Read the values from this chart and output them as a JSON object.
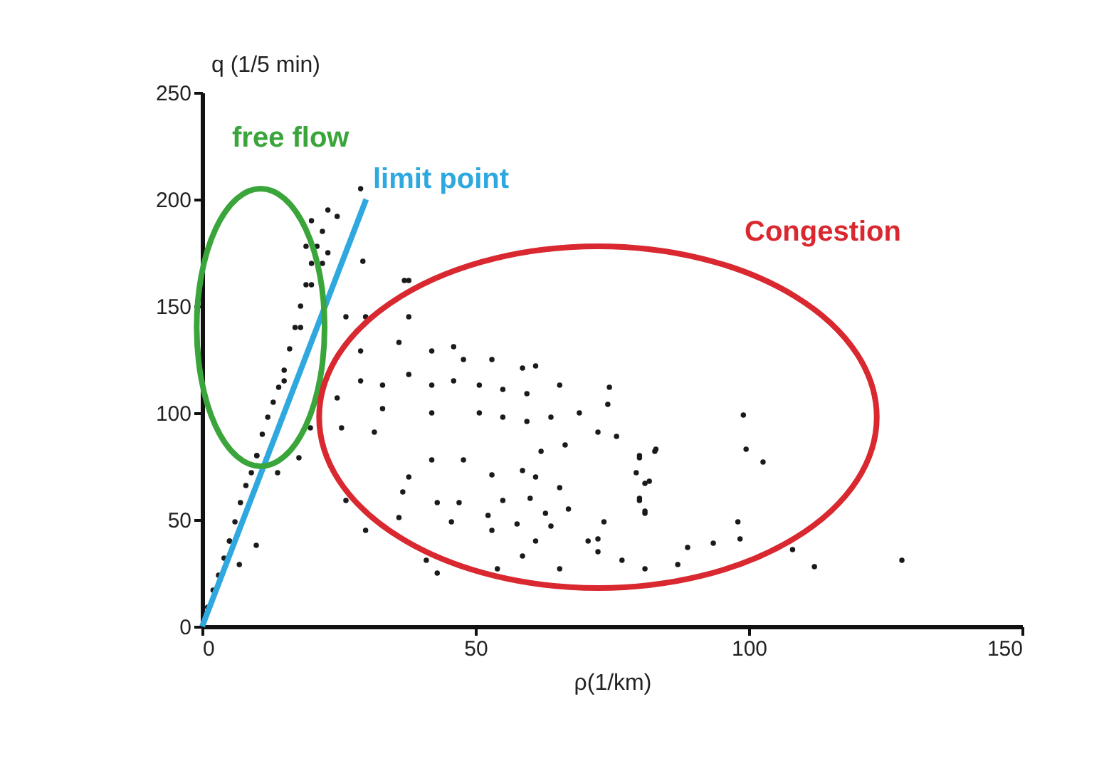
{
  "chart_data": {
    "type": "scatter",
    "xlabel": "ρ(1/km)",
    "ylabel": "q (1/5 min)",
    "xlim": [
      0,
      150
    ],
    "ylim": [
      0,
      250
    ],
    "xticks": [
      0,
      50,
      100,
      150
    ],
    "yticks": [
      0,
      50,
      100,
      150,
      200,
      250
    ],
    "grid": false,
    "annotations": [
      "free flow",
      "limit point",
      "Congestion"
    ],
    "series": [
      {
        "marker": "circle",
        "color": "#1a1a1a",
        "x": [
          1,
          2,
          3,
          4,
          5,
          6,
          7,
          8,
          9,
          10,
          11,
          12,
          13,
          14,
          15,
          16,
          17,
          18,
          19,
          20,
          21,
          22,
          19,
          20,
          23,
          5,
          10,
          15,
          18,
          20,
          22,
          23,
          9.9,
          6.8,
          13.8,
          17.7,
          19.8,
          29.4,
          37,
          24.7,
          29,
          37.8,
          26.3,
          29.9,
          37.8,
          29,
          36,
          42,
          46,
          47.8,
          53,
          58.6,
          61,
          29,
          33,
          37.8,
          42,
          46,
          50.7,
          55,
          59.4,
          65.4,
          74.5,
          24.7,
          33,
          42,
          50.7,
          55,
          59.4,
          63.8,
          69,
          74.2,
          72.4,
          75.8,
          66.4,
          62,
          82.8,
          80,
          25.5,
          31.5,
          42,
          47.8,
          53,
          58.6,
          61,
          65.4,
          37.8,
          36.7,
          79.4,
          81,
          26.3,
          43,
          47,
          55,
          60,
          52.3,
          62.8,
          67,
          36,
          45.6,
          57.6,
          63.8,
          53,
          29.9,
          61,
          70.6,
          72.4,
          73.5,
          81,
          80,
          58.6,
          72.4,
          76.8,
          65.4,
          81,
          54,
          41,
          43,
          99,
          99.5,
          102.6,
          83,
          80,
          81.8,
          80,
          81,
          98,
          98.4,
          93.5,
          88.8,
          87,
          108,
          112,
          128
        ],
        "values": [
          9,
          17,
          24,
          32,
          40,
          49,
          58,
          66,
          72,
          80,
          90,
          98,
          105,
          112,
          120,
          130,
          140,
          150,
          160,
          170,
          178,
          185,
          178,
          190,
          195,
          40,
          80,
          115,
          140,
          160,
          170,
          175,
          38,
          29,
          72,
          79,
          93,
          171,
          162,
          192,
          205,
          162,
          145,
          145,
          145,
          129,
          133,
          129,
          131,
          125,
          125,
          121,
          122,
          115,
          113,
          118,
          113,
          115,
          113,
          111,
          109,
          113,
          112,
          107,
          102,
          100,
          100,
          98,
          96,
          98,
          100,
          104,
          91,
          89,
          85,
          82,
          82,
          80,
          93,
          91,
          78,
          78,
          71,
          73,
          70,
          65,
          70,
          63,
          72,
          67,
          59,
          58,
          58,
          59,
          60,
          52,
          53,
          55,
          51,
          49,
          48,
          47,
          45,
          45,
          40,
          40,
          41,
          49,
          53,
          59,
          33,
          35,
          31,
          27,
          27,
          27,
          31,
          25,
          99,
          83,
          77,
          83,
          79,
          68,
          60,
          54,
          49,
          41,
          39,
          37,
          29,
          36,
          28,
          31
        ]
      },
      {
        "type": "line",
        "color": "#2ea8df",
        "x": [
          0,
          30
        ],
        "values": [
          0,
          200
        ]
      }
    ]
  }
}
